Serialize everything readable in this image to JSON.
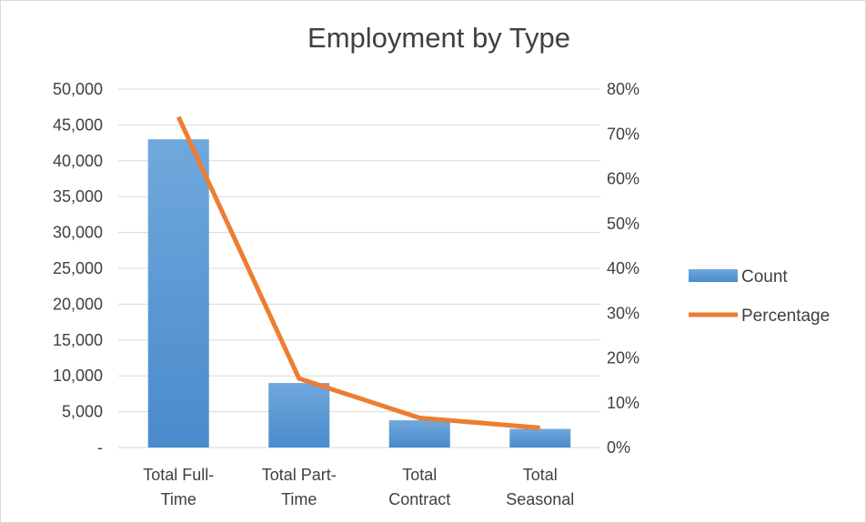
{
  "chart_data": {
    "type": "bar",
    "title": "Employment by Type",
    "categories": [
      [
        "Total Full-",
        "Time"
      ],
      [
        "Total Part-",
        "Time"
      ],
      [
        "Total",
        "Contract"
      ],
      [
        "Total",
        "Seasonal"
      ]
    ],
    "series": [
      {
        "name": "Count",
        "type": "bar",
        "axis": "left",
        "values": [
          43000,
          9000,
          3800,
          2600
        ],
        "color": "#5b9bd5"
      },
      {
        "name": "Percentage",
        "type": "line",
        "axis": "right",
        "values": [
          0.738,
          0.154,
          0.066,
          0.044
        ],
        "color": "#ed7d31"
      }
    ],
    "y_left": {
      "ylim": [
        0,
        50000
      ],
      "ticks": [
        0,
        5000,
        10000,
        15000,
        20000,
        25000,
        30000,
        35000,
        40000,
        45000,
        50000
      ],
      "tick_labels": [
        "-",
        "5,000",
        "10,000",
        "15,000",
        "20,000",
        "25,000",
        "30,000",
        "35,000",
        "40,000",
        "45,000",
        "50,000"
      ]
    },
    "y_right": {
      "ylim": [
        0,
        0.8
      ],
      "ticks": [
        0,
        0.1,
        0.2,
        0.3,
        0.4,
        0.5,
        0.6,
        0.7,
        0.8
      ],
      "tick_labels": [
        "0%",
        "10%",
        "20%",
        "30%",
        "40%",
        "50%",
        "60%",
        "70%",
        "80%"
      ]
    },
    "grid": true,
    "legend": {
      "position": "right",
      "entries": [
        "Count",
        "Percentage"
      ]
    },
    "xlabel": "",
    "ylabel": ""
  }
}
